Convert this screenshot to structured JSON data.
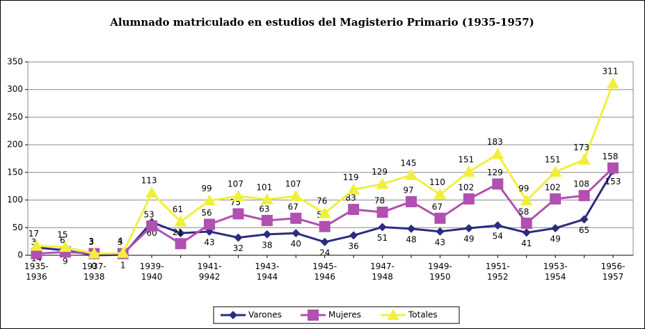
{
  "chart_data": {
    "type": "line",
    "title": "Alumnado matriculado en estudios del Magisterio Primario (1935-1957)",
    "categories": [
      "1935-1936",
      null,
      "1937-1938",
      null,
      "1939-1940",
      null,
      "1941-9942",
      null,
      "1943-1944",
      null,
      "1945-1946",
      null,
      "1947-1948",
      null,
      "1949-1950",
      null,
      "1951-1952",
      null,
      "1953-1954",
      null,
      "1956-1957"
    ],
    "series": [
      {
        "name": "Varones",
        "color": "#2b2b80",
        "marker": "diamond",
        "values": [
          14,
          9,
          0,
          1,
          60,
          40,
          43,
          32,
          38,
          40,
          24,
          36,
          51,
          48,
          43,
          49,
          54,
          41,
          49,
          65,
          153
        ]
      },
      {
        "name": "Mujeres",
        "color": "#b050b0",
        "marker": "square",
        "values": [
          3,
          6,
          3,
          3,
          53,
          21,
          56,
          75,
          63,
          67,
          52,
          83,
          78,
          97,
          67,
          102,
          129,
          58,
          102,
          108,
          158
        ]
      },
      {
        "name": "Totales",
        "color": "#f0f03c",
        "marker": "triangle",
        "values": [
          17,
          15,
          3,
          4,
          113,
          61,
          99,
          107,
          101,
          107,
          76,
          119,
          129,
          145,
          110,
          151,
          183,
          99,
          151,
          173,
          311
        ]
      }
    ],
    "ylim": [
      0,
      350
    ],
    "yticks": [
      0,
      50,
      100,
      150,
      200,
      250,
      300,
      350
    ],
    "grid": true,
    "legend": "bottom"
  }
}
